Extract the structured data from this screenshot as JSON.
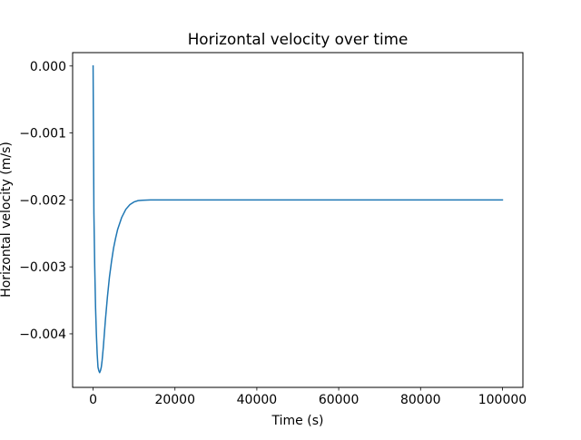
{
  "chart_data": {
    "type": "line",
    "title": "Horizontal velocity over time",
    "xlabel": "Time (s)",
    "ylabel": "Horizontal velocity (m/s)",
    "xlim": [
      -5000,
      105000
    ],
    "ylim": [
      -0.0048,
      0.0002
    ],
    "x_ticks": [
      0,
      20000,
      40000,
      60000,
      80000,
      100000
    ],
    "x_tick_labels": [
      "0",
      "20000",
      "40000",
      "60000",
      "80000",
      "100000"
    ],
    "y_ticks": [
      0.0,
      -0.001,
      -0.002,
      -0.003,
      -0.004
    ],
    "y_tick_labels": [
      "0.000",
      "−0.001",
      "−0.002",
      "−0.003",
      "−0.004"
    ],
    "grid": false,
    "series": [
      {
        "color": "#1f77b4",
        "x": [
          0,
          200,
          400,
          600,
          800,
          1000,
          1200,
          1400,
          1600,
          1800,
          2000,
          2200,
          2500,
          3000,
          3500,
          4000,
          4500,
          5000,
          5500,
          6000,
          7000,
          8000,
          9000,
          10000,
          11000,
          12000,
          14000,
          16000,
          20000,
          30000,
          50000,
          70000,
          100000
        ],
        "y": [
          0.0,
          -0.0022,
          -0.003,
          -0.0036,
          -0.004,
          -0.0043,
          -0.0045,
          -0.00455,
          -0.00458,
          -0.00455,
          -0.0045,
          -0.0044,
          -0.0042,
          -0.0038,
          -0.00345,
          -0.00315,
          -0.00292,
          -0.00272,
          -0.00257,
          -0.00244,
          -0.00226,
          -0.00214,
          -0.00207,
          -0.00203,
          -0.00201,
          -0.002005,
          -0.002,
          -0.002,
          -0.002,
          -0.002,
          -0.002,
          -0.002,
          -0.002
        ]
      }
    ]
  }
}
